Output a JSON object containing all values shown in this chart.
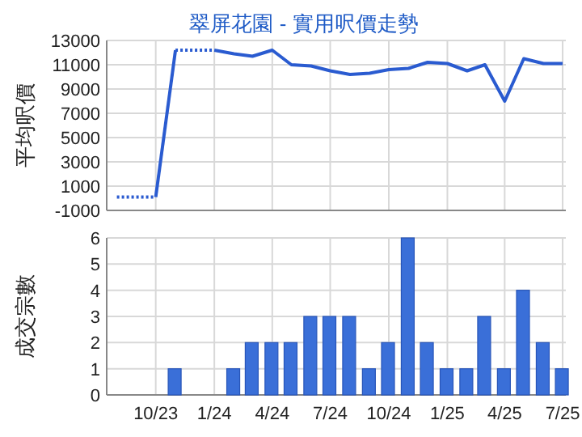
{
  "chart_data": [
    {
      "type": "line",
      "title": "翠屏花園 - 實用呎價走勢",
      "ylabel": "平均呎價",
      "series": [
        {
          "color": "#2a5bd0",
          "line_style": "solid",
          "x": [
            "2023-10",
            "2023-11"
          ],
          "values": [
            100,
            12200
          ]
        },
        {
          "color": "#2a5bd0",
          "line_style": "solid",
          "x": [
            "2024-01",
            "2024-02",
            "2024-03",
            "2024-04",
            "2024-05",
            "2024-06",
            "2024-07",
            "2024-08",
            "2024-09",
            "2024-10",
            "2024-11",
            "2024-12",
            "2025-01",
            "2025-02",
            "2025-03",
            "2025-04",
            "2025-05",
            "2025-06",
            "2025-07"
          ],
          "values": [
            12200,
            11900,
            11700,
            12200,
            11000,
            10900,
            10500,
            10200,
            10300,
            10600,
            10700,
            11200,
            11100,
            10500,
            11000,
            8000,
            11500,
            11100,
            11100
          ]
        },
        {
          "color": "#2a5bd0",
          "line_style": "dotted",
          "x": [
            "2023-08",
            "2023-10"
          ],
          "values": [
            100,
            100
          ]
        },
        {
          "color": "#2a5bd0",
          "line_style": "dotted",
          "x": [
            "2023-11",
            "2024-01"
          ],
          "values": [
            12200,
            12200
          ]
        }
      ],
      "xlim": [
        "2023-07-16",
        "2025-07-06"
      ],
      "xticks": [
        {
          "value": "2023-10",
          "label": null
        },
        {
          "value": "2024-01",
          "label": null
        },
        {
          "value": "2024-04",
          "label": null
        },
        {
          "value": "2024-07",
          "label": null
        },
        {
          "value": "2024-10",
          "label": null
        },
        {
          "value": "2025-01",
          "label": null
        },
        {
          "value": "2025-04",
          "label": null
        },
        {
          "value": "2025-07",
          "label": null
        }
      ],
      "ylim": [
        -1000,
        13000
      ],
      "yticks": [
        -1000,
        1000,
        3000,
        5000,
        7000,
        9000,
        11000,
        13000
      ],
      "tick_labels": "y",
      "grid": true,
      "marker": "none"
    },
    {
      "type": "bar",
      "ylabel": "成交宗數",
      "x": [
        "2023-11",
        "2024-02",
        "2024-03",
        "2024-04",
        "2024-05",
        "2024-06",
        "2024-07",
        "2024-08",
        "2024-09",
        "2024-10",
        "2024-11",
        "2024-12",
        "2025-01",
        "2025-02",
        "2025-03",
        "2025-04",
        "2025-05",
        "2025-06",
        "2025-07"
      ],
      "values": [
        1,
        1,
        2,
        2,
        2,
        3,
        3,
        3,
        1,
        2,
        6,
        2,
        1,
        1,
        3,
        1,
        4,
        2,
        1
      ],
      "color": "#3a6fd8",
      "xlim": [
        "2023-07-16",
        "2025-07-06"
      ],
      "xticks": [
        {
          "value": "2023-10",
          "label": "10/23"
        },
        {
          "value": "2024-01",
          "label": "1/24"
        },
        {
          "value": "2024-04",
          "label": "4/24"
        },
        {
          "value": "2024-07",
          "label": "7/24"
        },
        {
          "value": "2024-10",
          "label": "10/24"
        },
        {
          "value": "2025-01",
          "label": "1/25"
        },
        {
          "value": "2025-04",
          "label": "4/25"
        },
        {
          "value": "2025-07",
          "label": "7/25"
        }
      ],
      "ylim": [
        0,
        6
      ],
      "yticks": [
        0,
        1,
        2,
        3,
        4,
        5,
        6
      ],
      "grid": true
    }
  ]
}
